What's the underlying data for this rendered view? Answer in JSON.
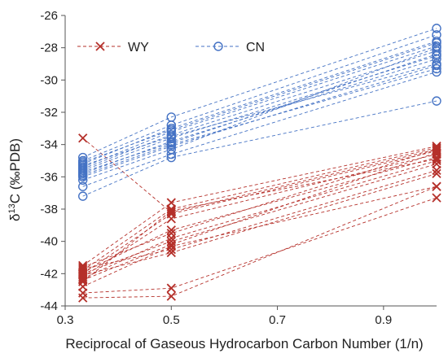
{
  "chart_data": {
    "type": "line",
    "xlabel": "Reciprocal of Gaseous Hydrocarbon Carbon Number (1/n)",
    "ylabel": "δ13C (‰PDB)",
    "xlim": [
      0.3,
      1.0
    ],
    "ylim": [
      -44,
      -26
    ],
    "xticks": [
      0.3,
      0.5,
      0.7,
      0.9
    ],
    "yticks": [
      -44,
      -42,
      -40,
      -38,
      -36,
      -34,
      -32,
      -30,
      -28,
      -26
    ],
    "grid": false,
    "legend_position": "top-left",
    "series": [
      {
        "name": "WY",
        "color": "#b5302a",
        "marker": "x",
        "line": "dashed",
        "samples": [
          [
            -33.6,
            -38.2,
            -34.3
          ],
          [
            -41.5,
            -37.6,
            -34.1
          ],
          [
            -41.8,
            -38.0,
            -34.2
          ],
          [
            -42.0,
            -38.3,
            -34.4
          ],
          [
            -42.2,
            -38.6,
            -34.6
          ],
          [
            -41.9,
            -39.3,
            -34.8
          ],
          [
            -42.3,
            -39.8,
            -35.0
          ],
          [
            -42.0,
            -40.0,
            -35.2
          ],
          [
            -42.4,
            -40.2,
            -34.5
          ],
          [
            -41.7,
            -40.5,
            -35.6
          ],
          [
            -42.1,
            -40.7,
            -35.8
          ],
          [
            -42.8,
            -40.3,
            -36.6
          ],
          [
            -43.2,
            -42.9,
            -37.3
          ],
          [
            -43.5,
            -43.4,
            -36.6
          ],
          [
            -42.5,
            -38.1,
            -34.9
          ],
          [
            -41.6,
            -39.5,
            -34.3
          ]
        ]
      },
      {
        "name": "CN",
        "color": "#4472c4",
        "marker": "circle",
        "line": "dashed",
        "samples": [
          [
            -34.8,
            -32.3,
            -26.8
          ],
          [
            -35.0,
            -32.8,
            -27.2
          ],
          [
            -35.2,
            -33.0,
            -27.6
          ],
          [
            -35.4,
            -33.2,
            -27.9
          ],
          [
            -35.5,
            -33.4,
            -28.2
          ],
          [
            -35.6,
            -33.6,
            -28.5
          ],
          [
            -35.8,
            -33.8,
            -28.7
          ],
          [
            -35.3,
            -33.5,
            -29.0
          ],
          [
            -35.9,
            -34.0,
            -29.3
          ],
          [
            -36.2,
            -34.3,
            -28.0
          ],
          [
            -36.6,
            -34.6,
            -29.5
          ],
          [
            -37.2,
            -34.8,
            -31.3
          ],
          [
            -35.1,
            -33.1,
            -27.7
          ],
          [
            -35.7,
            -33.9,
            -28.4
          ],
          [
            -36.0,
            -34.1,
            -29.1
          ]
        ]
      }
    ]
  }
}
